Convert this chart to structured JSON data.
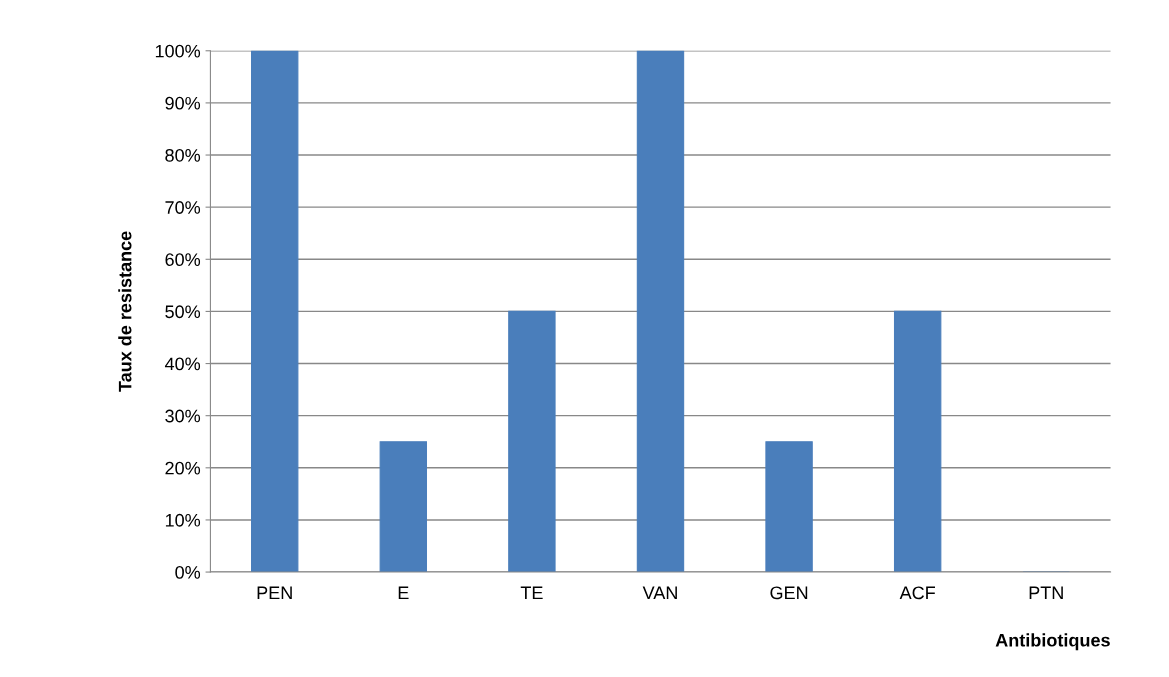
{
  "chart_data": {
    "type": "bar",
    "xlabel": "Antibiotiques",
    "ylabel": "Taux de resistance",
    "categories": [
      "PEN",
      "E",
      "TE",
      "VAN",
      "GEN",
      "ACF",
      "PTN"
    ],
    "values": [
      100,
      25,
      50,
      100,
      25,
      50,
      0
    ],
    "color": "#4a7ebb",
    "ylim": [
      0,
      100
    ],
    "yticks": [
      {
        "value": 0,
        "label": "0%"
      },
      {
        "value": 10,
        "label": "10%"
      },
      {
        "value": 20,
        "label": "20%"
      },
      {
        "value": 30,
        "label": "30%"
      },
      {
        "value": 40,
        "label": "40%"
      },
      {
        "value": 50,
        "label": "50%"
      },
      {
        "value": 60,
        "label": "60%"
      },
      {
        "value": 70,
        "label": "70%"
      },
      {
        "value": 80,
        "label": "80%"
      },
      {
        "value": 90,
        "label": "90%"
      },
      {
        "value": 100,
        "label": "100%"
      }
    ],
    "grid": "y"
  }
}
